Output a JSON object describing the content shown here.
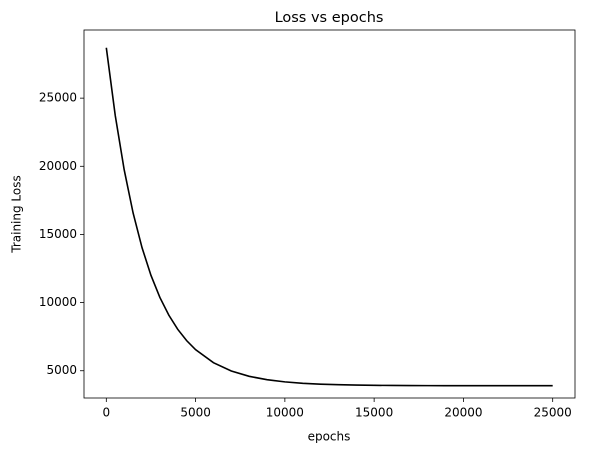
{
  "chart_data": {
    "type": "line",
    "title": "Loss vs epochs",
    "x_label": "epochs",
    "y_label": "Training Loss",
    "x": [
      0,
      500,
      1000,
      1500,
      2000,
      2500,
      3000,
      3500,
      4000,
      4500,
      5000,
      6000,
      7000,
      8000,
      9000,
      10000,
      11000,
      12000,
      13000,
      14000,
      15000,
      16000,
      17000,
      18000,
      19000,
      20000,
      21000,
      22000,
      23000,
      24000,
      25000
    ],
    "series": [
      {
        "name": "Training Loss",
        "color": "#000000",
        "values": [
          28700,
          23727,
          19750,
          16573,
          14031,
          12000,
          10375,
          9078,
          8039,
          7208,
          6544,
          5591,
          4981,
          4590,
          4341,
          4182,
          4080,
          4015,
          3974,
          3947,
          3930,
          3919,
          3912,
          3908,
          3905,
          3903,
          3902,
          3901,
          3901,
          3900,
          3900
        ]
      }
    ],
    "xlim": [
      -1250,
      26250
    ],
    "ylim": [
      3000,
      30000
    ],
    "xticks": [
      0,
      5000,
      10000,
      15000,
      20000,
      25000
    ],
    "yticks": [
      5000,
      10000,
      15000,
      20000,
      25000
    ]
  }
}
